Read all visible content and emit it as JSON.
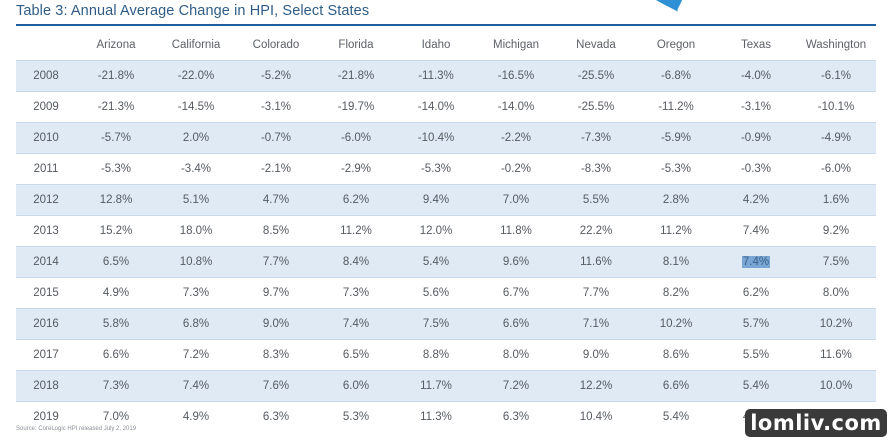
{
  "title": "Table 3: Annual Average Change in HPI, Select States",
  "columns": [
    "",
    "Arizona",
    "California",
    "Colorado",
    "Florida",
    "Idaho",
    "Michigan",
    "Nevada",
    "Oregon",
    "Texas",
    "Washington"
  ],
  "rows": [
    {
      "year": "2008",
      "values": [
        "-21.8%",
        "-22.0%",
        "-5.2%",
        "-21.8%",
        "-11.3%",
        "-16.5%",
        "-25.5%",
        "-6.8%",
        "-4.0%",
        "-6.1%"
      ]
    },
    {
      "year": "2009",
      "values": [
        "-21.3%",
        "-14.5%",
        "-3.1%",
        "-19.7%",
        "-14.0%",
        "-14.0%",
        "-25.5%",
        "-11.2%",
        "-3.1%",
        "-10.1%"
      ]
    },
    {
      "year": "2010",
      "values": [
        "-5.7%",
        "2.0%",
        "-0.7%",
        "-6.0%",
        "-10.4%",
        "-2.2%",
        "-7.3%",
        "-5.9%",
        "-0.9%",
        "-4.9%"
      ]
    },
    {
      "year": "2011",
      "values": [
        "-5.3%",
        "-3.4%",
        "-2.1%",
        "-2.9%",
        "-5.3%",
        "-0.2%",
        "-8.3%",
        "-5.3%",
        "-0.3%",
        "-6.0%"
      ]
    },
    {
      "year": "2012",
      "values": [
        "12.8%",
        "5.1%",
        "4.7%",
        "6.2%",
        "9.4%",
        "7.0%",
        "5.5%",
        "2.8%",
        "4.2%",
        "1.6%"
      ]
    },
    {
      "year": "2013",
      "values": [
        "15.2%",
        "18.0%",
        "8.5%",
        "11.2%",
        "12.0%",
        "11.8%",
        "22.2%",
        "11.2%",
        "7.4%",
        "9.2%"
      ]
    },
    {
      "year": "2014",
      "values": [
        "6.5%",
        "10.8%",
        "7.7%",
        "8.4%",
        "5.4%",
        "9.6%",
        "11.6%",
        "8.1%",
        "7.4%",
        "7.5%"
      ]
    },
    {
      "year": "2015",
      "values": [
        "4.9%",
        "7.3%",
        "9.7%",
        "7.3%",
        "5.6%",
        "6.7%",
        "7.7%",
        "8.2%",
        "6.2%",
        "8.0%"
      ]
    },
    {
      "year": "2016",
      "values": [
        "5.8%",
        "6.8%",
        "9.0%",
        "7.4%",
        "7.5%",
        "6.6%",
        "7.1%",
        "10.2%",
        "5.7%",
        "10.2%"
      ]
    },
    {
      "year": "2017",
      "values": [
        "6.6%",
        "7.2%",
        "8.3%",
        "6.5%",
        "8.8%",
        "8.0%",
        "9.0%",
        "8.6%",
        "5.5%",
        "11.6%"
      ]
    },
    {
      "year": "2018",
      "values": [
        "7.3%",
        "7.4%",
        "7.6%",
        "6.0%",
        "11.7%",
        "7.2%",
        "12.2%",
        "6.6%",
        "5.4%",
        "10.0%"
      ]
    },
    {
      "year": "2019",
      "values": [
        "7.0%",
        "4.9%",
        "6.3%",
        "5.3%",
        "11.3%",
        "6.3%",
        "10.4%",
        "5.4%",
        "4.6%",
        "6.6%"
      ]
    }
  ],
  "highlight": {
    "row": 6,
    "col": 8
  },
  "source": "Source: CoreLogic HPI released July 2, 2019",
  "watermark": "lomliv.com",
  "colors": {
    "title": "#2f5c86",
    "rule": "#1f5fa3",
    "band": "#dfeaf5",
    "highlight": "#7aa6d6",
    "deco": "#2e8fd4"
  },
  "deco_icon": "swoosh-shape"
}
